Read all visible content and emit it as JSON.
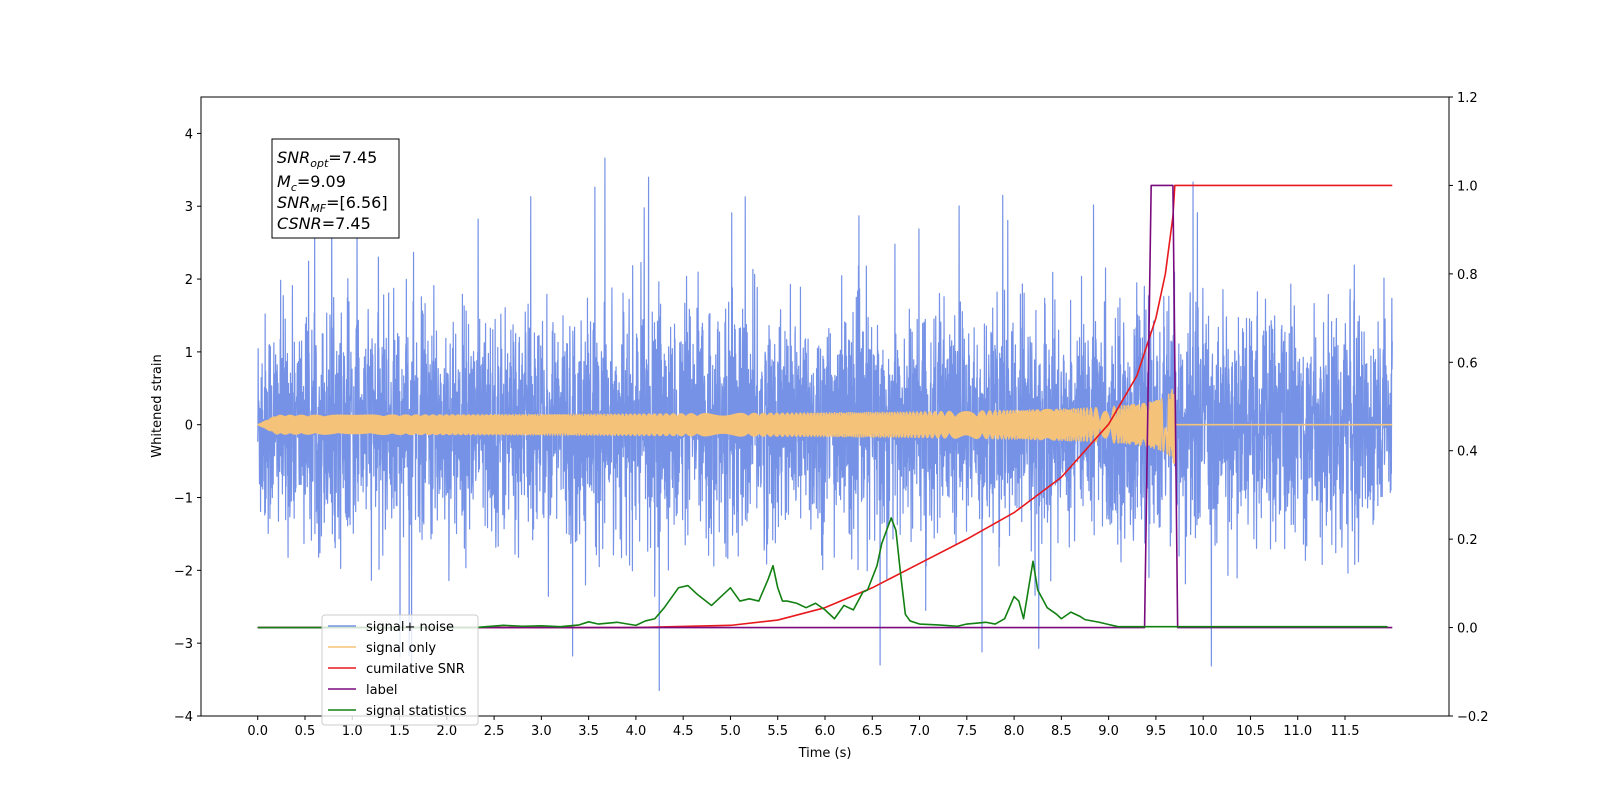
{
  "chart_data": {
    "type": "line",
    "xlabel": "Time (s)",
    "ylabel_left": "Whitened strain",
    "ylabel_right": "",
    "xlim": [
      -0.6,
      12.6
    ],
    "ylim_left": [
      -4,
      4.5
    ],
    "ylim_right": [
      -0.2,
      1.2
    ],
    "x_ticks": [
      "0.0",
      "0.5",
      "1.0",
      "1.5",
      "2.0",
      "2.5",
      "3.0",
      "3.5",
      "4.0",
      "4.5",
      "5.0",
      "5.5",
      "6.0",
      "6.5",
      "7.0",
      "7.5",
      "8.0",
      "8.5",
      "9.0",
      "9.5",
      "10.0",
      "10.5",
      "11.0",
      "11.5"
    ],
    "y_ticks_left": [
      "−4",
      "−3",
      "−2",
      "−1",
      "0",
      "1",
      "2",
      "3",
      "4"
    ],
    "y_ticks_right": [
      "−0.2",
      "0.0",
      "0.2",
      "0.4",
      "0.6",
      "0.8",
      "1.0",
      "1.2"
    ],
    "grid": false,
    "legend_position": "lower-left",
    "annotation": {
      "lines": [
        {
          "base": "SNR",
          "sub": "opt",
          "value": "=7.45"
        },
        {
          "base": "M",
          "sub": "c",
          "value": "=9.09"
        },
        {
          "base": "SNR",
          "sub": "MF",
          "value": "=[6.56]"
        },
        {
          "base": "CSNR",
          "sub": "",
          "value": "=7.45"
        }
      ]
    },
    "series": [
      {
        "name": "signal+ noise",
        "color": "#7592e6",
        "axis": "left",
        "kind": "noise",
        "x_range": [
          0.0,
          12.0
        ],
        "typical_amplitude": 1.5,
        "peak_max": 4.13,
        "peak_min": -3.65
      },
      {
        "name": "signal only",
        "color": "#f5c27a",
        "axis": "left",
        "kind": "chirp",
        "x_range": [
          0.0,
          12.0
        ],
        "merger_time": 9.7,
        "peak_amplitude": 0.6
      },
      {
        "name": "cumilative SNR",
        "color": "#e8191c",
        "axis": "right",
        "x": [
          0.0,
          4.0,
          5.0,
          5.5,
          6.0,
          6.5,
          7.0,
          7.5,
          8.0,
          8.5,
          9.0,
          9.3,
          9.5,
          9.6,
          9.68,
          9.7,
          12.0
        ],
        "y": [
          0.0,
          0.0,
          0.005,
          0.017,
          0.045,
          0.09,
          0.145,
          0.2,
          0.26,
          0.34,
          0.46,
          0.57,
          0.7,
          0.8,
          0.93,
          1.0,
          1.0
        ]
      },
      {
        "name": "label",
        "color": "#7a0a7e",
        "axis": "right",
        "x": [
          0.0,
          9.38,
          9.45,
          9.45,
          9.68,
          9.68,
          9.73,
          12.0
        ],
        "y": [
          0.0,
          0.0,
          1.0,
          1.0,
          1.0,
          1.0,
          0.0,
          0.0
        ]
      },
      {
        "name": "signal statistics",
        "color": "#128012",
        "axis": "right",
        "x": [
          0.0,
          2.3,
          2.6,
          2.8,
          3.0,
          3.2,
          3.4,
          3.5,
          3.6,
          3.8,
          4.0,
          4.1,
          4.2,
          4.3,
          4.45,
          4.55,
          4.65,
          4.8,
          4.95,
          5.0,
          5.1,
          5.2,
          5.3,
          5.4,
          5.45,
          5.5,
          5.55,
          5.6,
          5.7,
          5.8,
          5.9,
          6.0,
          6.1,
          6.2,
          6.3,
          6.4,
          6.45,
          6.55,
          6.6,
          6.7,
          6.75,
          6.8,
          6.85,
          6.9,
          7.0,
          7.2,
          7.4,
          7.5,
          7.7,
          7.8,
          7.9,
          8.0,
          8.05,
          8.1,
          8.2,
          8.25,
          8.35,
          8.45,
          8.5,
          8.6,
          8.7,
          8.75,
          8.9,
          9.0,
          9.1,
          11.95
        ],
        "y": [
          0.0,
          0.0,
          0.005,
          0.003,
          0.004,
          0.002,
          0.006,
          0.013,
          0.008,
          0.012,
          0.005,
          0.015,
          0.02,
          0.045,
          0.09,
          0.095,
          0.075,
          0.05,
          0.08,
          0.09,
          0.06,
          0.065,
          0.06,
          0.11,
          0.14,
          0.09,
          0.06,
          0.06,
          0.055,
          0.045,
          0.055,
          0.04,
          0.02,
          0.05,
          0.04,
          0.08,
          0.085,
          0.14,
          0.19,
          0.248,
          0.22,
          0.12,
          0.03,
          0.015,
          0.008,
          0.006,
          0.003,
          0.008,
          0.012,
          0.008,
          0.02,
          0.07,
          0.06,
          0.02,
          0.15,
          0.085,
          0.045,
          0.03,
          0.02,
          0.035,
          0.025,
          0.018,
          0.012,
          0.007,
          0.002,
          0.002
        ]
      }
    ]
  }
}
